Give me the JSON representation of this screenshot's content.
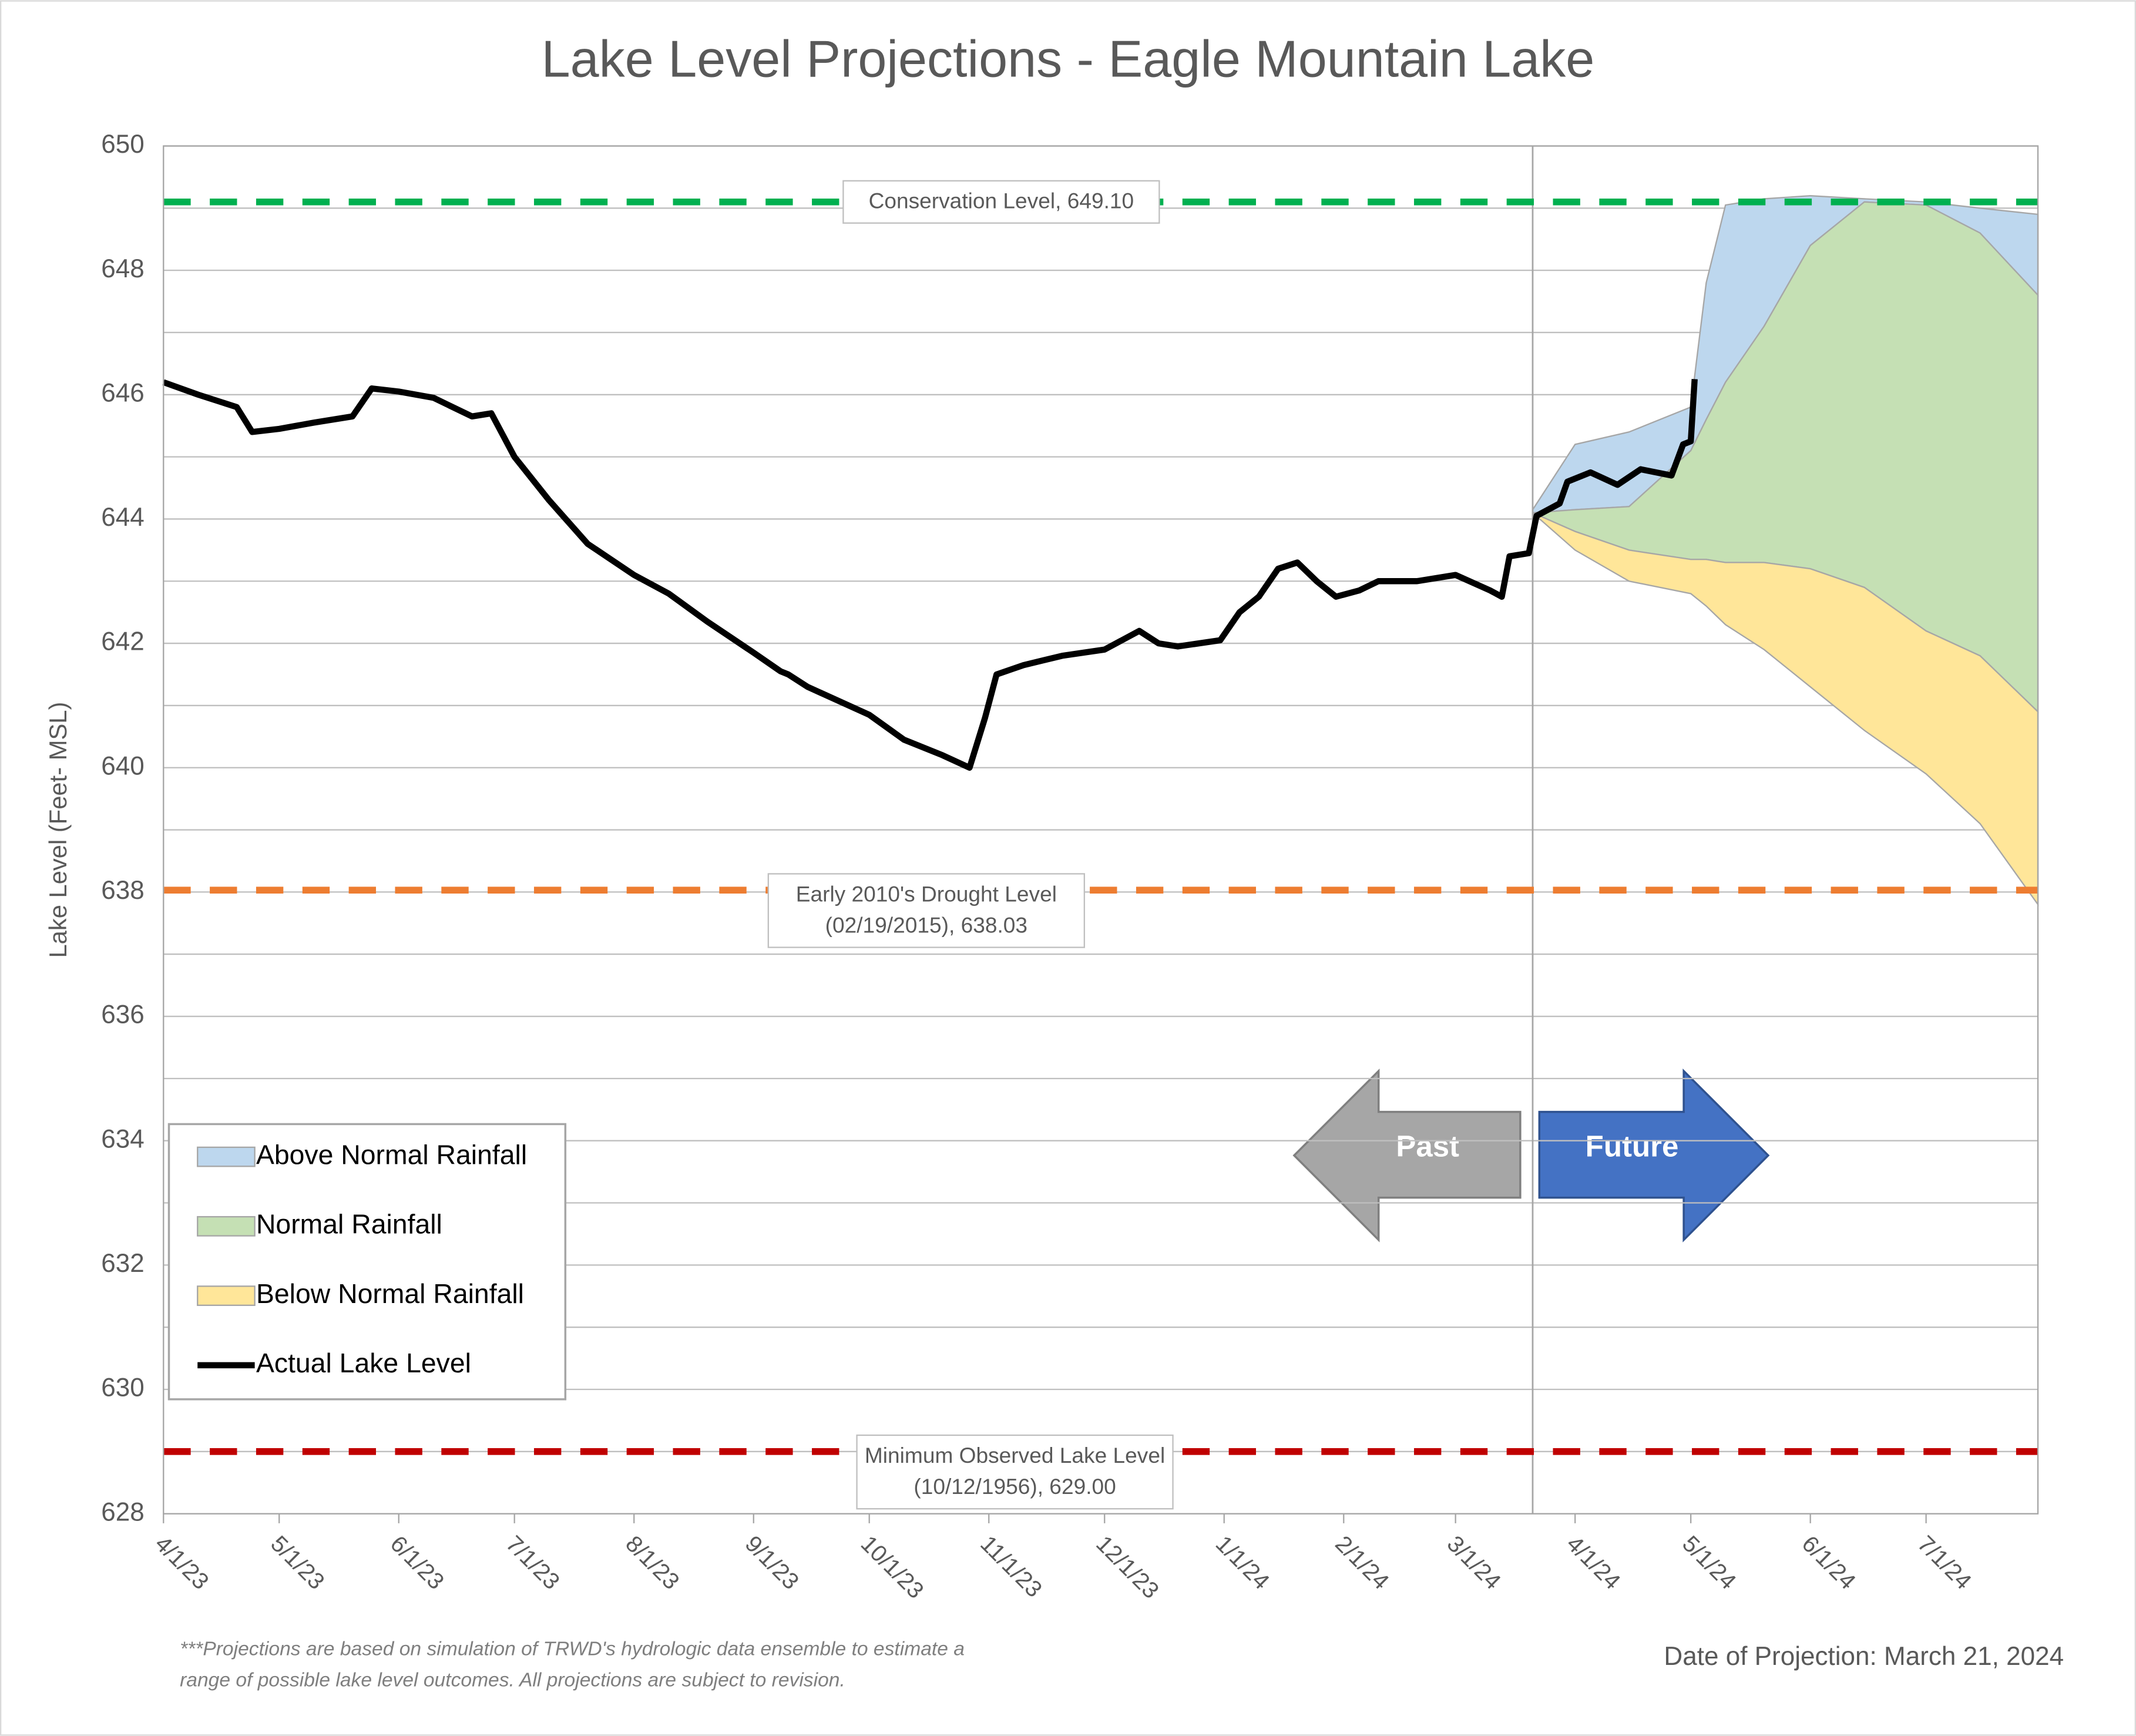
{
  "chart_data": {
    "type": "line",
    "title": "Lake Level Projections - Eagle Mountain Lake",
    "y_label": "Lake Level (Feet- MSL)",
    "footnote": [
      "***Projections are based on simulation of TRWD's hydrologic data ensemble to estimate a",
      "range of possible lake level outcomes.  All projections are subject to revision."
    ],
    "projection_note": "Date of Projection: March 21, 2024",
    "divider_x": "2024-03-21",
    "arrows": {
      "past": "Past",
      "future": "Future"
    },
    "xlim": [
      "2023-04-01",
      "2024-07-30"
    ],
    "xticks": [
      {
        "value": "2023-04-01",
        "label": "4/1/23"
      },
      {
        "value": "2023-05-01",
        "label": "5/1/23"
      },
      {
        "value": "2023-06-01",
        "label": "6/1/23"
      },
      {
        "value": "2023-07-01",
        "label": "7/1/23"
      },
      {
        "value": "2023-08-01",
        "label": "8/1/23"
      },
      {
        "value": "2023-09-01",
        "label": "9/1/23"
      },
      {
        "value": "2023-10-01",
        "label": "10/1/23"
      },
      {
        "value": "2023-11-01",
        "label": "11/1/23"
      },
      {
        "value": "2023-12-01",
        "label": "12/1/23"
      },
      {
        "value": "2024-01-01",
        "label": "1/1/24"
      },
      {
        "value": "2024-02-01",
        "label": "2/1/24"
      },
      {
        "value": "2024-03-01",
        "label": "3/1/24"
      },
      {
        "value": "2024-04-01",
        "label": "4/1/24"
      },
      {
        "value": "2024-05-01",
        "label": "5/1/24"
      },
      {
        "value": "2024-06-01",
        "label": "6/1/24"
      },
      {
        "value": "2024-07-01",
        "label": "7/1/24"
      }
    ],
    "ylim": [
      628,
      650
    ],
    "yticks": [
      628,
      630,
      632,
      634,
      636,
      638,
      640,
      642,
      644,
      646,
      648,
      650
    ],
    "grid": true,
    "minor_grid": true,
    "legend": "lower left",
    "reference_lines": [
      {
        "label": [
          "Conservation Level, 649.10"
        ],
        "value": 649.1,
        "color": "#00b050"
      },
      {
        "label": [
          "Early 2010's Drought Level",
          "(02/19/2015), 638.03"
        ],
        "value": 638.03,
        "color": "#ed7d31"
      },
      {
        "label": [
          "Minimum Observed Lake Level",
          "(10/12/1956), 629.00"
        ],
        "value": 629.0,
        "color": "#c00000"
      }
    ],
    "series": [
      {
        "name": "Above Normal Rainfall",
        "type": "area",
        "color": "#bdd7ee",
        "x": [
          "2024-03-21",
          "2024-04-01",
          "2024-04-15",
          "2024-05-01",
          "2024-05-05",
          "2024-05-10",
          "2024-05-20",
          "2024-06-01",
          "2024-06-15",
          "2024-07-01",
          "2024-07-15",
          "2024-07-30"
        ],
        "values": [
          644.15,
          645.2,
          645.4,
          645.8,
          647.8,
          649.05,
          649.15,
          649.2,
          649.15,
          649.1,
          649.0,
          648.9
        ],
        "lower": [
          644.1,
          644.15,
          644.2,
          645.1,
          645.6,
          646.2,
          647.1,
          648.4,
          649.1,
          649.05,
          648.6,
          647.6
        ]
      },
      {
        "name": "Normal Rainfall",
        "type": "area",
        "color": "#c5e0b4",
        "x": [
          "2024-03-21",
          "2024-04-01",
          "2024-04-15",
          "2024-05-01",
          "2024-05-05",
          "2024-05-10",
          "2024-05-20",
          "2024-06-01",
          "2024-06-15",
          "2024-07-01",
          "2024-07-15",
          "2024-07-30"
        ],
        "values": [
          644.1,
          644.15,
          644.2,
          645.1,
          645.6,
          646.2,
          647.1,
          648.4,
          649.1,
          649.05,
          648.6,
          647.6
        ],
        "lower": [
          644.1,
          643.8,
          643.5,
          643.35,
          643.35,
          643.3,
          643.3,
          643.2,
          642.9,
          642.2,
          641.8,
          640.9
        ]
      },
      {
        "name": "Below Normal Rainfall",
        "type": "area",
        "color": "#ffe699",
        "x": [
          "2024-03-21",
          "2024-04-01",
          "2024-04-15",
          "2024-05-01",
          "2024-05-05",
          "2024-05-10",
          "2024-05-20",
          "2024-06-01",
          "2024-06-15",
          "2024-07-01",
          "2024-07-15",
          "2024-07-30"
        ],
        "values": [
          644.1,
          643.8,
          643.5,
          643.35,
          643.35,
          643.3,
          643.3,
          643.2,
          642.9,
          642.2,
          641.8,
          640.9
        ],
        "lower": [
          644.1,
          643.5,
          643.0,
          642.8,
          642.6,
          642.3,
          641.9,
          641.3,
          640.6,
          639.9,
          639.1,
          637.8
        ]
      },
      {
        "name": "Actual Lake Level",
        "type": "line",
        "color": "#000000",
        "x": [
          "2023-04-01",
          "2023-04-10",
          "2023-04-20",
          "2023-04-24",
          "2023-05-01",
          "2023-05-10",
          "2023-05-20",
          "2023-05-25",
          "2023-06-01",
          "2023-06-10",
          "2023-06-20",
          "2023-06-25",
          "2023-07-01",
          "2023-07-10",
          "2023-07-20",
          "2023-08-01",
          "2023-08-10",
          "2023-08-20",
          "2023-09-01",
          "2023-09-08",
          "2023-09-10",
          "2023-09-15",
          "2023-10-01",
          "2023-10-10",
          "2023-10-20",
          "2023-10-27",
          "2023-10-31",
          "2023-11-03",
          "2023-11-10",
          "2023-11-20",
          "2023-12-01",
          "2023-12-10",
          "2023-12-15",
          "2023-12-20",
          "2023-12-31",
          "2024-01-05",
          "2024-01-10",
          "2024-01-15",
          "2024-01-20",
          "2024-01-25",
          "2024-01-30",
          "2024-02-05",
          "2024-02-10",
          "2024-02-20",
          "2024-03-01",
          "2024-03-10",
          "2024-03-13",
          "2024-03-15",
          "2024-03-20",
          "2024-03-22",
          "2024-03-28",
          "2024-03-30",
          "2024-04-05",
          "2024-04-12",
          "2024-04-18",
          "2024-04-26",
          "2024-04-29",
          "2024-05-01",
          "2024-05-02"
        ],
        "values": [
          646.2,
          646.0,
          645.8,
          645.4,
          645.45,
          645.55,
          645.65,
          646.1,
          646.05,
          645.95,
          645.65,
          645.7,
          645.0,
          644.3,
          643.6,
          643.1,
          642.8,
          642.35,
          641.85,
          641.55,
          641.5,
          641.3,
          640.85,
          640.45,
          640.2,
          640.0,
          640.8,
          641.5,
          641.65,
          641.8,
          641.9,
          642.2,
          642.0,
          641.95,
          642.05,
          642.5,
          642.75,
          643.2,
          643.3,
          643.0,
          642.75,
          642.85,
          643.0,
          643.0,
          643.1,
          642.85,
          642.75,
          643.4,
          643.45,
          644.05,
          644.25,
          644.6,
          644.75,
          644.55,
          644.8,
          644.7,
          645.2,
          645.25,
          646.25
        ]
      }
    ]
  }
}
